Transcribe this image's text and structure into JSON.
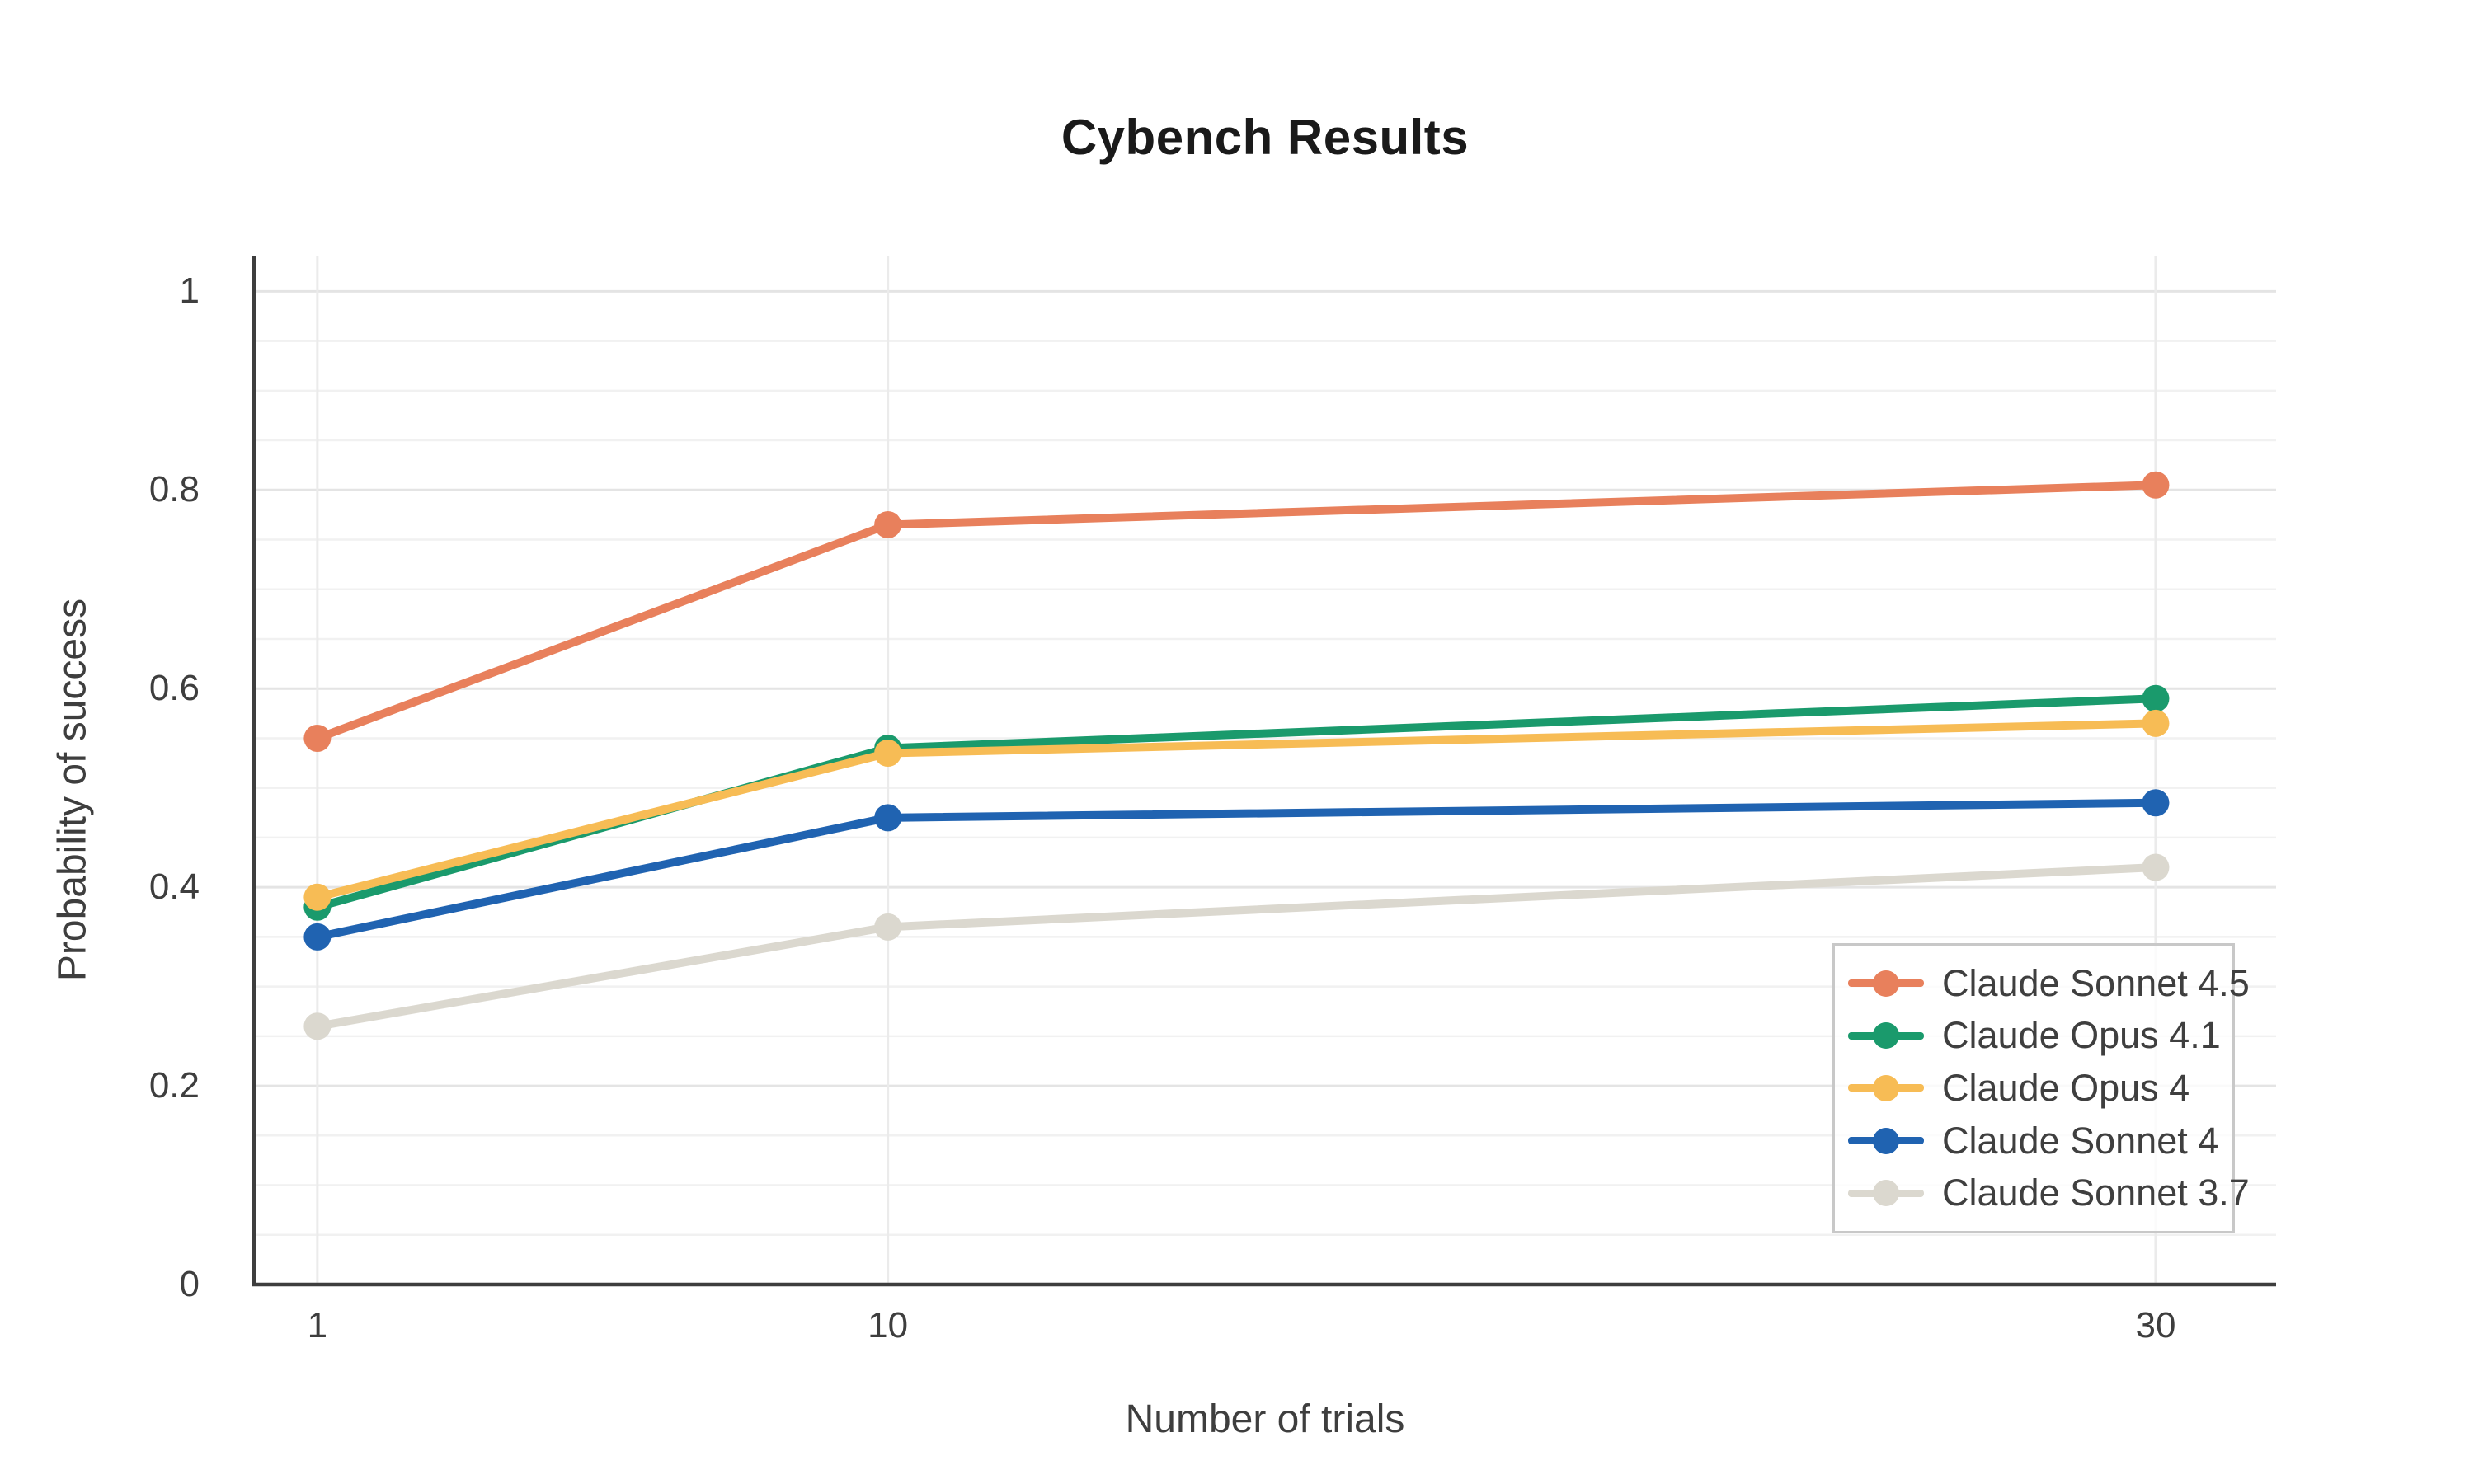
{
  "title": "Cybench Results",
  "chart_data": {
    "type": "line",
    "title": "Cybench Results",
    "xlabel": "Number of trials",
    "ylabel": "Probability of success",
    "x": [
      1,
      10,
      30
    ],
    "x_tick_labels": [
      "1",
      "10",
      "30"
    ],
    "y_ticks": [
      0,
      0.2,
      0.4,
      0.6,
      0.8,
      1
    ],
    "y_tick_labels": [
      "0",
      "0.2",
      "0.4",
      "0.6",
      "0.8",
      "1"
    ],
    "xlim": [
      0,
      31.9
    ],
    "ylim": [
      0,
      1.036
    ],
    "grid": true,
    "minor_grid_step": 0.05,
    "legend_position": "lower right",
    "series": [
      {
        "name": "Claude Sonnet 4.5",
        "color": "#E8805C",
        "values": [
          0.55,
          0.765,
          0.805
        ]
      },
      {
        "name": "Claude Opus 4.1",
        "color": "#1A9A6C",
        "values": [
          0.38,
          0.54,
          0.59
        ]
      },
      {
        "name": "Claude Opus 4",
        "color": "#F7BC55",
        "values": [
          0.39,
          0.535,
          0.565
        ]
      },
      {
        "name": "Claude Sonnet 4",
        "color": "#2063B1",
        "values": [
          0.35,
          0.47,
          0.485
        ]
      },
      {
        "name": "Claude Sonnet 3.7",
        "color": "#DBD8CF",
        "values": [
          0.26,
          0.36,
          0.42
        ]
      }
    ]
  },
  "style_colors": {
    "axis_line": "#3e3e3e",
    "grid_major": "#e4e4e4",
    "grid_minor": "#f1f1f1",
    "grid_vertical": "#ebebeb",
    "text": "#3e3e3e",
    "legend_border": "#c8c8c8",
    "background": "#ffffff"
  }
}
